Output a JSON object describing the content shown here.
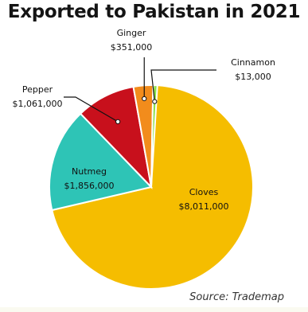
{
  "chart_data": {
    "type": "pie",
    "title": "Exported to Pakistan in 2021",
    "source": "Source: Trademap",
    "slices": [
      {
        "name": "Cloves",
        "value": 8011000,
        "value_label": "$8,011,000",
        "color": "#f5bd00"
      },
      {
        "name": "Nutmeg",
        "value": 1856000,
        "value_label": "$1,856,000",
        "color": "#2ec4b6"
      },
      {
        "name": "Pepper",
        "value": 1061000,
        "value_label": "$1,061,000",
        "color": "#c8101c"
      },
      {
        "name": "Ginger",
        "value": 351000,
        "value_label": "$351,000",
        "color": "#f28c1c"
      },
      {
        "name": "Cinnamon",
        "value": 13000,
        "value_label": "$13,000",
        "color": "#8be04a"
      }
    ]
  }
}
